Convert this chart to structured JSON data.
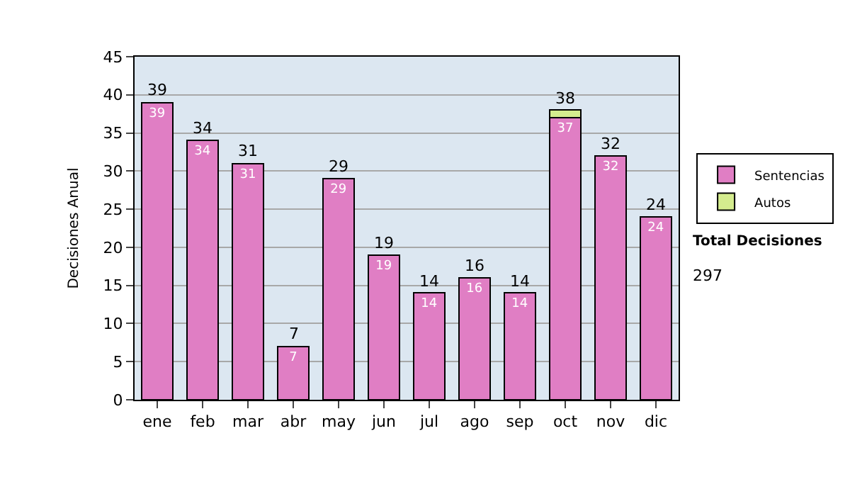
{
  "chart_data": {
    "type": "bar",
    "stacked": true,
    "ylabel": "Decisiones Anual",
    "categories": [
      "ene",
      "feb",
      "mar",
      "abr",
      "may",
      "jun",
      "jul",
      "ago",
      "sep",
      "oct",
      "nov",
      "dic"
    ],
    "series": [
      {
        "name": "Sentencias",
        "color": "#e07ec4",
        "values": [
          39,
          34,
          31,
          7,
          29,
          19,
          14,
          16,
          14,
          37,
          32,
          24
        ],
        "value_labels": [
          "39",
          "34",
          "31",
          "7",
          "29",
          "19",
          "14",
          "16",
          "14",
          "37",
          "32",
          "24"
        ]
      },
      {
        "name": "Autos",
        "color": "#d4ec8e",
        "values": [
          null,
          null,
          null,
          null,
          null,
          null,
          null,
          null,
          null,
          1,
          null,
          null
        ]
      }
    ],
    "totals": [
      "39",
      "34",
      "31",
      "7",
      "29",
      "19",
      "14",
      "16",
      "14",
      "38",
      "32",
      "24"
    ],
    "ylim": [
      0,
      45
    ],
    "yticks": [
      0,
      5,
      10,
      15,
      20,
      25,
      30,
      35,
      40,
      45
    ],
    "grid": "y",
    "legend": "right",
    "annotations": [
      "Total Decisiones",
      "297"
    ]
  }
}
